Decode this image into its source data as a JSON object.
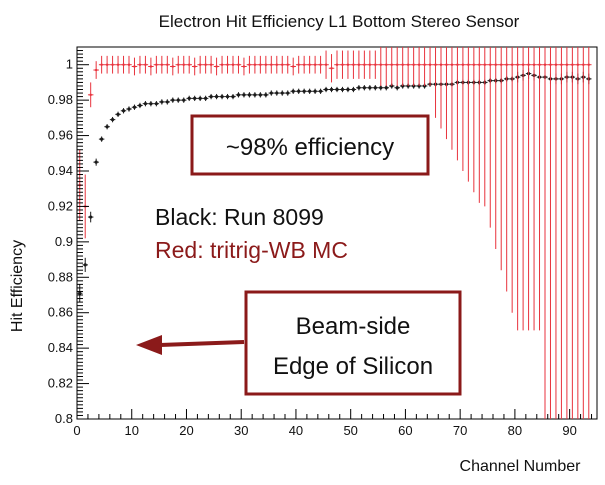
{
  "chart_data": {
    "type": "scatter",
    "title": "Electron Hit Efficiency L1 Bottom Stereo Sensor",
    "xlabel": "Channel Number",
    "ylabel": "Hit Efficiency",
    "xlim": [
      0,
      95
    ],
    "ylim": [
      0.8,
      1.01
    ],
    "x_ticks": [
      0,
      10,
      20,
      30,
      40,
      50,
      60,
      70,
      80,
      90
    ],
    "y_ticks": [
      0.8,
      0.82,
      0.84,
      0.86,
      0.88,
      0.9,
      0.92,
      0.94,
      0.96,
      0.98,
      1
    ],
    "x_tick_labels": [
      "0",
      "10",
      "20",
      "30",
      "40",
      "50",
      "60",
      "70",
      "80",
      "90"
    ],
    "y_tick_labels": [
      "0.8",
      "0.82",
      "0.84",
      "0.86",
      "0.88",
      "0.9",
      "0.92",
      "0.94",
      "0.96",
      "0.98",
      "1"
    ],
    "grid": false,
    "legend": {
      "entries": [
        {
          "text": "Black:  Run 8099",
          "color": "#111111"
        },
        {
          "text": "Red:  tritrig-WB MC",
          "color": "#8b1a1a"
        }
      ]
    },
    "annotations": {
      "efficiency_box": "~98% efficiency",
      "beam_side_line1": "Beam-side",
      "beam_side_line2": "Edge of Silicon"
    },
    "series": [
      {
        "color": "#1a1a1a",
        "x": [
          0.5,
          1.5,
          2.5,
          3.5,
          4.5,
          5.5,
          6.5,
          7.5,
          8.5,
          9.5,
          10.5,
          11.5,
          12.5,
          13.5,
          14.5,
          15.5,
          16.5,
          17.5,
          18.5,
          19.5,
          20.5,
          21.5,
          22.5,
          23.5,
          24.5,
          25.5,
          26.5,
          27.5,
          28.5,
          29.5,
          30.5,
          31.5,
          32.5,
          33.5,
          34.5,
          35.5,
          36.5,
          37.5,
          38.5,
          39.5,
          40.5,
          41.5,
          42.5,
          43.5,
          44.5,
          45.5,
          46.5,
          47.5,
          48.5,
          49.5,
          50.5,
          51.5,
          52.5,
          53.5,
          54.5,
          55.5,
          56.5,
          57.5,
          58.5,
          59.5,
          60.5,
          61.5,
          62.5,
          63.5,
          64.5,
          65.5,
          66.5,
          67.5,
          68.5,
          69.5,
          70.5,
          71.5,
          72.5,
          73.5,
          74.5,
          75.5,
          76.5,
          77.5,
          78.5,
          79.5,
          80.5,
          81.5,
          82.5,
          83.5,
          84.5,
          85.5,
          86.5,
          87.5,
          88.5,
          89.5,
          90.5,
          91.5,
          92.5,
          93.5
        ],
        "y": [
          0.871,
          0.887,
          0.914,
          0.945,
          0.958,
          0.965,
          0.969,
          0.972,
          0.974,
          0.975,
          0.976,
          0.977,
          0.978,
          0.978,
          0.978,
          0.979,
          0.979,
          0.98,
          0.98,
          0.98,
          0.981,
          0.981,
          0.981,
          0.981,
          0.982,
          0.982,
          0.982,
          0.982,
          0.982,
          0.983,
          0.983,
          0.983,
          0.983,
          0.983,
          0.983,
          0.984,
          0.984,
          0.984,
          0.984,
          0.985,
          0.985,
          0.985,
          0.985,
          0.985,
          0.985,
          0.986,
          0.986,
          0.986,
          0.986,
          0.986,
          0.986,
          0.987,
          0.987,
          0.987,
          0.987,
          0.987,
          0.987,
          0.988,
          0.987,
          0.988,
          0.988,
          0.988,
          0.988,
          0.988,
          0.989,
          0.989,
          0.989,
          0.989,
          0.989,
          0.99,
          0.99,
          0.99,
          0.99,
          0.99,
          0.99,
          0.991,
          0.991,
          0.991,
          0.992,
          0.992,
          0.993,
          0.994,
          0.995,
          0.994,
          0.993,
          0.993,
          0.992,
          0.992,
          0.992,
          0.993,
          0.993,
          0.992,
          0.993,
          0.992
        ]
      },
      {
        "color": "#e8323c",
        "x": [
          0.5,
          1.5,
          2.5,
          3.5,
          4.5,
          5.5,
          6.5,
          7.5,
          8.5,
          9.5,
          10.5,
          11.5,
          12.5,
          13.5,
          14.5,
          15.5,
          16.5,
          17.5,
          18.5,
          19.5,
          20.5,
          21.5,
          22.5,
          23.5,
          24.5,
          25.5,
          26.5,
          27.5,
          28.5,
          29.5,
          30.5,
          31.5,
          32.5,
          33.5,
          34.5,
          35.5,
          36.5,
          37.5,
          38.5,
          39.5,
          40.5,
          41.5,
          42.5,
          43.5,
          44.5,
          45.5,
          46.5,
          47.5,
          48.5,
          49.5,
          50.5,
          51.5,
          52.5,
          53.5,
          54.5,
          55.5,
          56.5,
          57.5,
          58.5,
          59.5,
          60.5,
          61.5,
          62.5,
          63.5,
          64.5,
          65.5,
          66.5,
          67.5,
          68.5,
          69.5,
          70.5,
          71.5,
          72.5,
          73.5,
          74.5,
          75.5,
          76.5,
          77.5,
          78.5,
          79.5,
          80.5,
          81.5,
          82.5,
          83.5,
          84.5,
          85.5,
          86.5,
          87.5,
          88.5,
          89.5,
          90.5,
          91.5,
          92.5,
          93.5
        ],
        "y": [
          0.932,
          0.92,
          0.983,
          0.997,
          1,
          1,
          1,
          1,
          1,
          1,
          0.999,
          1,
          1,
          0.999,
          1,
          1,
          1,
          0.999,
          1,
          1,
          1,
          0.999,
          1,
          1,
          1,
          0.999,
          1,
          1,
          1,
          1,
          0.999,
          1,
          1,
          1,
          1,
          1,
          1,
          1,
          1,
          0.999,
          1,
          1,
          1,
          1,
          1,
          1,
          0.998,
          1,
          1,
          1,
          1,
          1,
          1,
          1,
          1,
          1,
          1,
          1,
          1,
          1,
          1,
          1,
          1,
          1,
          1,
          1,
          1,
          1,
          1,
          1,
          1,
          1,
          1,
          1,
          1,
          1,
          1,
          1,
          1,
          1,
          1,
          1,
          1,
          1,
          1,
          1,
          1,
          1,
          1,
          1,
          1,
          1,
          1,
          1
        ]
      }
    ]
  }
}
